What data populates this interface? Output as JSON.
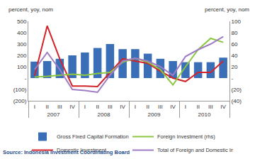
{
  "chart_data": {
    "type": "bar",
    "y_label": "percent, yoy, nom",
    "y2_label": "percent, yoy, nom",
    "source": "Source: Indonesia Investment Coordinating Board",
    "category_groups": [
      "2007",
      "2007",
      "2007",
      "2007",
      "2008",
      "2008",
      "2008",
      "2008",
      "2009",
      "2009",
      "2009",
      "2009",
      "2010",
      "2010",
      "2010",
      "2010"
    ],
    "categories": [
      "I",
      "II",
      "III",
      "IV",
      "I",
      "II",
      "III",
      "IV",
      "I",
      "II",
      "III",
      "IV",
      "I",
      "II",
      "III",
      "IV"
    ],
    "series": [
      {
        "name": "Gross Fixed Capital Formation",
        "type": "bar",
        "color": "#3a6fb7",
        "values": [
          145,
          150,
          170,
          200,
          225,
          265,
          300,
          255,
          255,
          215,
          170,
          150,
          140,
          140,
          140,
          180
        ]
      },
      {
        "name": "Foreign Investment (rhs)",
        "type": "line",
        "color": "#8dc63f",
        "axis": "y2",
        "values": [
          2,
          3,
          5,
          7,
          5,
          8,
          10,
          28,
          35,
          28,
          15,
          -12,
          20,
          50,
          70,
          63
        ]
      },
      {
        "name": "Domestic Investment",
        "type": "line",
        "color": "#d2232a",
        "values": [
          20,
          460,
          170,
          -70,
          -70,
          -75,
          50,
          170,
          150,
          130,
          60,
          0,
          -30,
          50,
          50,
          150
        ]
      },
      {
        "name": "Total of Foreign and Domestic Investment (rhs)",
        "type": "line",
        "color": "#a07cc5",
        "axis": "y2",
        "values": [
          15,
          45,
          15,
          -20,
          -22,
          -25,
          5,
          30,
          35,
          30,
          20,
          5,
          38,
          50,
          60,
          73
        ]
      }
    ],
    "ylim": [
      -200,
      500
    ],
    "yticks": [
      {
        "value": -200,
        "label": "(200)"
      },
      {
        "value": -100,
        "label": "(100)"
      },
      {
        "value": 0,
        "label": "-"
      },
      100,
      200,
      300,
      400,
      500
    ],
    "y2lim": [
      -40,
      100
    ],
    "y2ticks": [
      {
        "value": -40,
        "label": "(40)"
      },
      {
        "value": -20,
        "label": "(20)"
      },
      {
        "value": 0,
        "label": "-"
      },
      20,
      40,
      60,
      80,
      100
    ],
    "grid": false,
    "legend": "bottom"
  }
}
